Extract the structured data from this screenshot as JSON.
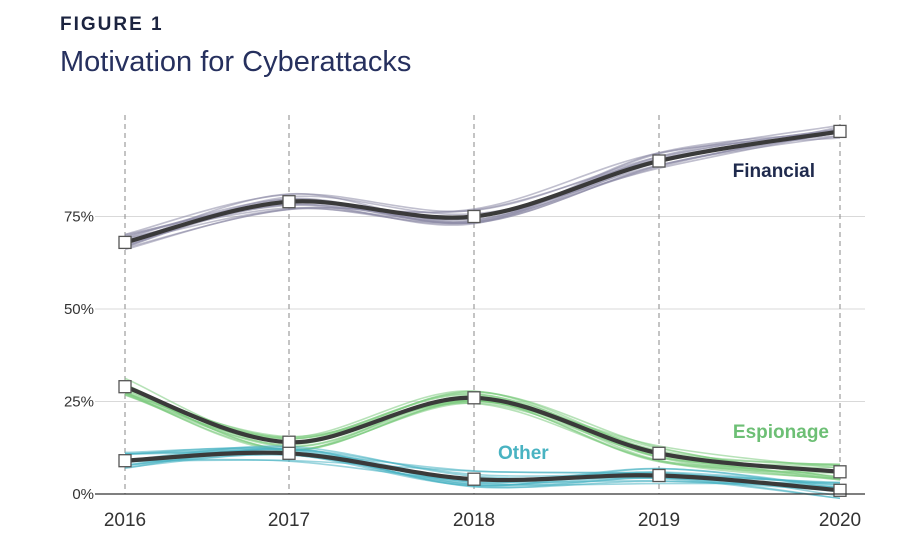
{
  "figure": {
    "label": "FIGURE 1"
  },
  "chart_data": {
    "type": "line",
    "title": "Motivation for Cyberattacks",
    "xlabel": "",
    "ylabel": "",
    "x": [
      "2016",
      "2017",
      "2018",
      "2019",
      "2020"
    ],
    "ylim": [
      0,
      100
    ],
    "yticks": [
      {
        "value": 0,
        "label": "0%"
      },
      {
        "value": 25,
        "label": "25%"
      },
      {
        "value": 50,
        "label": "50%"
      },
      {
        "value": 75,
        "label": "75%"
      }
    ],
    "grid": true,
    "series": [
      {
        "name": "Financial",
        "values": [
          68,
          79,
          75,
          90,
          98
        ],
        "color": "#1f2a4d",
        "band_color": "#8c8aa6"
      },
      {
        "name": "Espionage",
        "values": [
          29,
          14,
          26,
          11,
          6
        ],
        "color": "#6dbf75",
        "band_color": "#7ccb7e"
      },
      {
        "name": "Other",
        "values": [
          9,
          11,
          4,
          5,
          1
        ],
        "color": "#49b3c2",
        "band_color": "#49b3c2"
      }
    ],
    "line_color": "#3a3a3a"
  }
}
